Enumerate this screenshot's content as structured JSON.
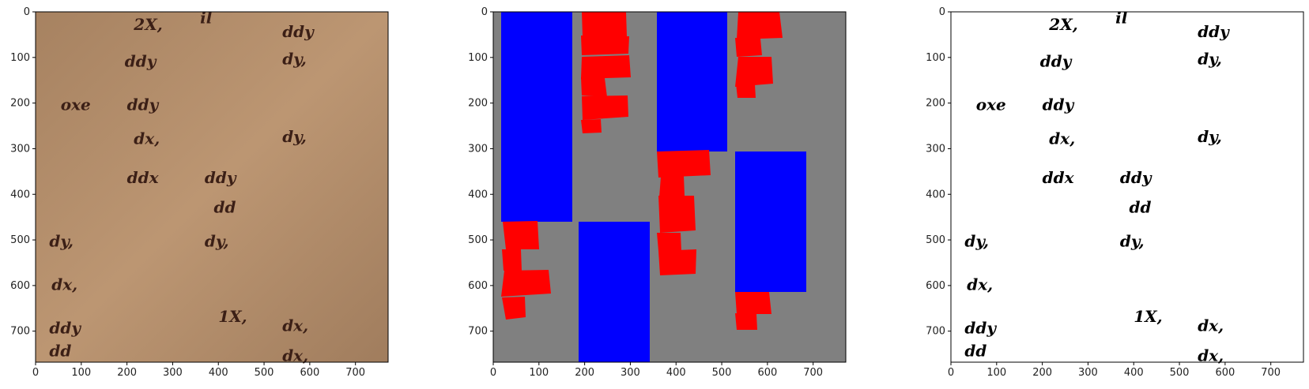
{
  "figure": {
    "panels": [
      {
        "id": "original",
        "description": "handwritten manuscript fragments on parchment",
        "background": "#b58f6c",
        "ink": "#3b1f16"
      },
      {
        "id": "segmentation",
        "description": "layout mask: blue text blocks, red word boxes on gray",
        "background": "#808080",
        "block_color": "#0000ff",
        "word_color": "#ff0000"
      },
      {
        "id": "binarized",
        "description": "binarized handwriting on white",
        "background": "#ffffff",
        "ink": "#000000"
      }
    ]
  },
  "axes": {
    "x_ticks": [
      "0",
      "100",
      "200",
      "300",
      "400",
      "500",
      "600",
      "700"
    ],
    "y_ticks": [
      "0",
      "100",
      "200",
      "300",
      "400",
      "500",
      "600",
      "700"
    ],
    "xlim": [
      0,
      768
    ],
    "ylim": [
      768,
      0
    ]
  },
  "handwriting": [
    {
      "text": "2X,",
      "x": 215,
      "y": 40
    },
    {
      "text": "il",
      "x": 360,
      "y": 25
    },
    {
      "text": "ddy",
      "x": 540,
      "y": 55
    },
    {
      "text": "dy,",
      "x": 540,
      "y": 115
    },
    {
      "text": "ddy",
      "x": 195,
      "y": 120
    },
    {
      "text": "ddy",
      "x": 200,
      "y": 215
    },
    {
      "text": "oxe",
      "x": 55,
      "y": 215
    },
    {
      "text": "dx,",
      "x": 215,
      "y": 290
    },
    {
      "text": "ddx",
      "x": 200,
      "y": 375
    },
    {
      "text": "ddy",
      "x": 370,
      "y": 375
    },
    {
      "text": "dy,",
      "x": 540,
      "y": 285
    },
    {
      "text": "dy,",
      "x": 30,
      "y": 515
    },
    {
      "text": "dy,",
      "x": 370,
      "y": 515
    },
    {
      "text": "ddy",
      "x": 30,
      "y": 705
    },
    {
      "text": "1X,",
      "x": 400,
      "y": 680
    },
    {
      "text": "dx,",
      "x": 540,
      "y": 700
    },
    {
      "text": "dx,",
      "x": 35,
      "y": 610
    },
    {
      "text": "dx,",
      "x": 540,
      "y": 765
    },
    {
      "text": "dd",
      "x": 30,
      "y": 755
    },
    {
      "text": "dd",
      "x": 390,
      "y": 440
    }
  ]
}
